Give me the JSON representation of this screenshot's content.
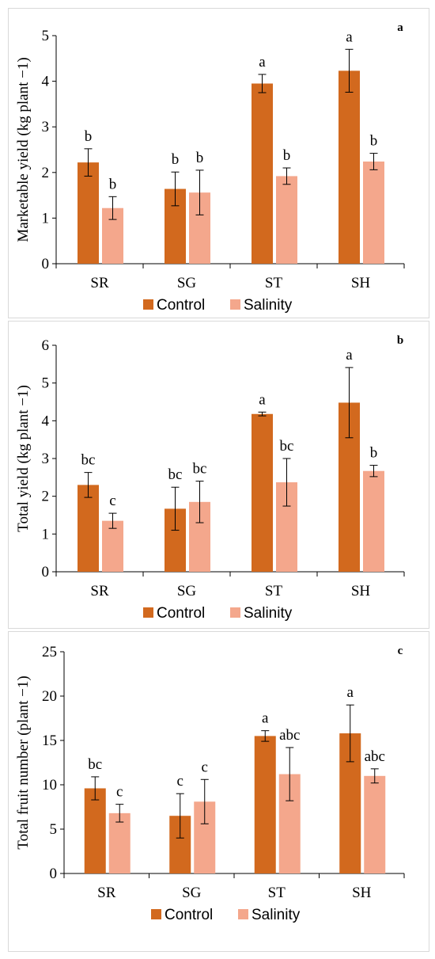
{
  "colors": {
    "control": "#D2691E",
    "salinity": "#F4A78C",
    "axis": "#000000"
  },
  "legend": {
    "placement": "bottom-center"
  },
  "chart_data": [
    {
      "type": "bar",
      "panel_label": "a",
      "ylabel": "Marketable yield  (kg plant −1)",
      "ylim": [
        0,
        5
      ],
      "yticks": [
        0,
        1,
        2,
        3,
        4,
        5
      ],
      "categories": [
        "SR",
        "SG",
        "ST",
        "SH"
      ],
      "series": [
        {
          "name": "Control",
          "values": [
            2.22,
            1.64,
            3.95,
            4.23
          ],
          "errors": [
            0.3,
            0.37,
            0.2,
            0.47
          ],
          "letters": [
            "b",
            "b",
            "a",
            "a"
          ]
        },
        {
          "name": "Salinity",
          "values": [
            1.22,
            1.56,
            1.92,
            2.24
          ],
          "errors": [
            0.25,
            0.49,
            0.18,
            0.18
          ],
          "letters": [
            "b",
            "b",
            "b",
            "b"
          ]
        }
      ]
    },
    {
      "type": "bar",
      "panel_label": "b",
      "ylabel": "Total yield (kg plant −1)",
      "ylim": [
        0,
        6
      ],
      "yticks": [
        0,
        1,
        2,
        3,
        4,
        5,
        6
      ],
      "categories": [
        "SR",
        "SG",
        "ST",
        "SH"
      ],
      "series": [
        {
          "name": "Control",
          "values": [
            2.3,
            1.67,
            4.18,
            4.48
          ],
          "errors": [
            0.33,
            0.57,
            0.05,
            0.93
          ],
          "letters": [
            "bc",
            "bc",
            "a",
            "a"
          ]
        },
        {
          "name": "Salinity",
          "values": [
            1.35,
            1.85,
            2.37,
            2.67
          ],
          "errors": [
            0.2,
            0.55,
            0.63,
            0.15
          ],
          "letters": [
            "c",
            "bc",
            "bc",
            "b"
          ]
        }
      ]
    },
    {
      "type": "bar",
      "panel_label": "c",
      "ylabel": "Total fruit number (plant −1)",
      "ylim": [
        0,
        25
      ],
      "yticks": [
        0,
        5,
        10,
        15,
        20,
        25
      ],
      "categories": [
        "SR",
        "SG",
        "ST",
        "SH"
      ],
      "series": [
        {
          "name": "Control",
          "values": [
            9.6,
            6.5,
            15.5,
            15.8
          ],
          "errors": [
            1.3,
            2.5,
            0.6,
            3.2
          ],
          "letters": [
            "bc",
            "c",
            "a",
            "a"
          ]
        },
        {
          "name": "Salinity",
          "values": [
            6.8,
            8.1,
            11.2,
            11.0
          ],
          "errors": [
            1.0,
            2.5,
            3.0,
            0.8
          ],
          "letters": [
            "c",
            "c",
            "abc",
            "abc"
          ]
        }
      ]
    }
  ]
}
